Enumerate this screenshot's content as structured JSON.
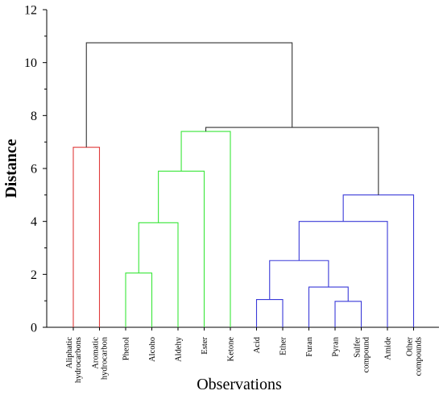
{
  "chart_data": {
    "type": "dendrogram",
    "xlabel": "Observations",
    "ylabel": "Distance",
    "ylim": [
      0,
      12
    ],
    "yticks": [
      0,
      2,
      4,
      6,
      8,
      10,
      12
    ],
    "grid": false,
    "leaves": [
      {
        "lines": [
          "Aliphatic",
          "hydrocarbons"
        ]
      },
      {
        "lines": [
          "Aromatic",
          "hydrocarbon"
        ]
      },
      {
        "lines": [
          "Phenol"
        ]
      },
      {
        "lines": [
          "Alcoho"
        ]
      },
      {
        "lines": [
          "Aldehy"
        ]
      },
      {
        "lines": [
          "Ester"
        ]
      },
      {
        "lines": [
          "Ketone"
        ]
      },
      {
        "lines": [
          "Acid"
        ]
      },
      {
        "lines": [
          "Ether"
        ]
      },
      {
        "lines": [
          "Furan"
        ]
      },
      {
        "lines": [
          "Pyran"
        ]
      },
      {
        "lines": [
          "Sulfer",
          "compound"
        ]
      },
      {
        "lines": [
          "Amide"
        ]
      },
      {
        "lines": [
          "Other",
          "compounds"
        ]
      }
    ],
    "merges": [
      {
        "name": "aliphatic-aromatic",
        "left": "L0",
        "right": "L1",
        "height": 6.8,
        "color": "#e03c3c"
      },
      {
        "name": "phenol-alcoho",
        "left": "L2",
        "right": "L3",
        "height": 2.05,
        "color": "#39e639"
      },
      {
        "name": "phenol-alcoho-aldehy",
        "left": "phenol-alcoho",
        "right": "L4",
        "height": 3.95,
        "color": "#39e639"
      },
      {
        "name": "plus-ester",
        "left": "phenol-alcoho-aldehy",
        "right": "L5",
        "height": 5.9,
        "color": "#39e639"
      },
      {
        "name": "plus-ketone",
        "left": "plus-ester",
        "right": "L6",
        "height": 7.4,
        "color": "#39e639"
      },
      {
        "name": "acid-ether",
        "left": "L7",
        "right": "L8",
        "height": 1.05,
        "color": "#3a3ad8"
      },
      {
        "name": "pyran-sulfer",
        "left": "L10",
        "right": "L11",
        "height": 0.98,
        "color": "#3a3ad8"
      },
      {
        "name": "furan-pyran-sulfer",
        "left": "L9",
        "right": "pyran-sulfer",
        "height": 1.52,
        "color": "#3a3ad8"
      },
      {
        "name": "acid-to-sulfer",
        "left": "acid-ether",
        "right": "furan-pyran-sulfer",
        "height": 2.52,
        "color": "#3a3ad8"
      },
      {
        "name": "plus-amide",
        "left": "acid-to-sulfer",
        "right": "L12",
        "height": 4.0,
        "color": "#3a3ad8"
      },
      {
        "name": "plus-other",
        "left": "plus-amide",
        "right": "L13",
        "height": 5.0,
        "color": "#3a3ad8"
      },
      {
        "name": "green-blue",
        "left": "plus-ketone",
        "right": "plus-other",
        "height": 7.55,
        "color": "#333333"
      },
      {
        "name": "root",
        "left": "aliphatic-aromatic",
        "right": "green-blue",
        "height": 10.75,
        "color": "#333333"
      }
    ]
  }
}
